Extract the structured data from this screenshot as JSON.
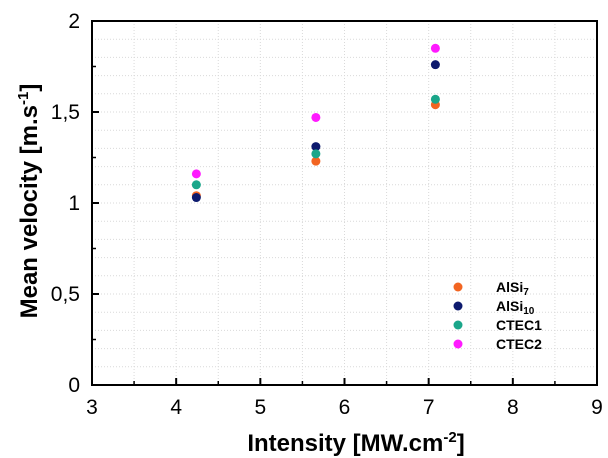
{
  "chart_data": {
    "type": "scatter",
    "xlabel": "Intensity [MW.cm",
    "xlabel_sup": "-2",
    "xlabel_end": "]",
    "ylabel": "Mean velocity [m.s",
    "ylabel_sup": "-1",
    "ylabel_end": "]",
    "xlim": [
      3,
      9
    ],
    "ylim": [
      0,
      2
    ],
    "x_ticks": [
      3,
      4,
      5,
      6,
      7,
      8,
      9
    ],
    "x_tick_labels": [
      "3",
      "4",
      "5",
      "6",
      "7",
      "8",
      "9"
    ],
    "y_ticks": [
      0,
      0.5,
      1,
      1.5,
      2
    ],
    "y_tick_labels": [
      "0",
      "0,5",
      "1",
      "1,5",
      "2"
    ],
    "grid": true,
    "legend_position": "bottom-right",
    "series": [
      {
        "name": "AlSi",
        "name_sub": "7",
        "color": "#f26522",
        "x": [
          4.24,
          5.66,
          7.08
        ],
        "y": [
          1.04,
          1.23,
          1.54
        ]
      },
      {
        "name": "AlSi",
        "name_sub": "10",
        "color": "#0d1a6e",
        "x": [
          4.24,
          5.66,
          7.08
        ],
        "y": [
          1.03,
          1.31,
          1.76
        ]
      },
      {
        "name": "CTEC1",
        "name_sub": "",
        "color": "#1aa68a",
        "x": [
          4.24,
          5.66,
          7.08
        ],
        "y": [
          1.1,
          1.27,
          1.57
        ]
      },
      {
        "name": "CTEC2",
        "name_sub": "",
        "color": "#ff1aff",
        "x": [
          4.24,
          5.66,
          7.08
        ],
        "y": [
          1.16,
          1.47,
          1.85
        ]
      }
    ]
  }
}
